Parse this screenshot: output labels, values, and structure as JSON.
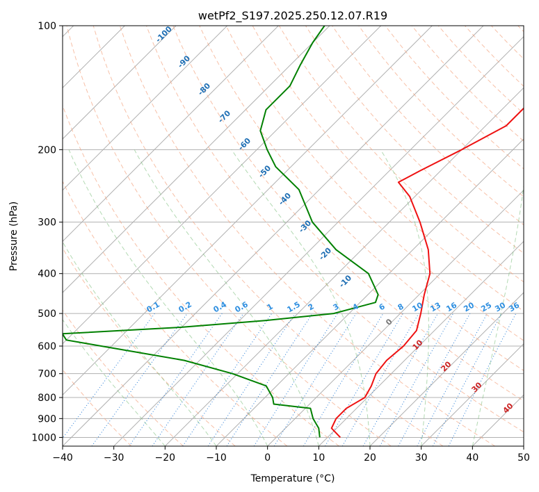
{
  "chart_data": {
    "type": "line",
    "title": "wetPf2_S197.2025.250.12.07.R19",
    "xlabel": "Temperature (°C)",
    "ylabel": "Pressure (hPa)",
    "xlim": [
      -40,
      50
    ],
    "ylim": [
      1050,
      100
    ],
    "y_scale": "log",
    "grid": true,
    "x_ticks": [
      -40,
      -30,
      -20,
      -10,
      0,
      10,
      20,
      30,
      40,
      50
    ],
    "y_ticks": [
      100,
      200,
      300,
      400,
      500,
      600,
      700,
      800,
      900,
      1000
    ],
    "dry_adiabat_labels": [
      "-100",
      "-90",
      "-80",
      "-70",
      "-60",
      "-50",
      "-40",
      "-30",
      "-20",
      "-10"
    ],
    "mixing_ratio_labels": [
      "0.1",
      "0.2",
      "0.4",
      "0.6",
      "1",
      "1.5",
      "2",
      "3",
      "4",
      "6",
      "8",
      "10",
      "13",
      "16",
      "20",
      "25",
      "30",
      "36"
    ],
    "moist_adiabat_labels": [
      "0",
      "10",
      "20",
      "30",
      "40"
    ],
    "series": [
      {
        "name": "",
        "color": "#ee1111",
        "points": [
          {
            "p": 1000,
            "t": 12.5
          },
          {
            "p": 950,
            "t": 9.0
          },
          {
            "p": 900,
            "t": 8.0
          },
          {
            "p": 850,
            "t": 8.0
          },
          {
            "p": 800,
            "t": 9.5
          },
          {
            "p": 750,
            "t": 8.5
          },
          {
            "p": 700,
            "t": 7.0
          },
          {
            "p": 650,
            "t": 6.5
          },
          {
            "p": 600,
            "t": 7.0
          },
          {
            "p": 550,
            "t": 6.5
          },
          {
            "p": 500,
            "t": 4.0
          },
          {
            "p": 450,
            "t": 1.0
          },
          {
            "p": 400,
            "t": -2.0
          },
          {
            "p": 350,
            "t": -7.0
          },
          {
            "p": 300,
            "t": -14.0
          },
          {
            "p": 260,
            "t": -21.0
          },
          {
            "p": 240,
            "t": -26.0
          },
          {
            "p": 225,
            "t": -24.0
          },
          {
            "p": 200,
            "t": -20.0
          },
          {
            "p": 175,
            "t": -16.0
          },
          {
            "p": 150,
            "t": -16.0
          },
          {
            "p": 130,
            "t": -14.0
          },
          {
            "p": 115,
            "t": -12.0
          },
          {
            "p": 100,
            "t": -13.0
          }
        ]
      },
      {
        "name": "",
        "color": "#008000",
        "points": [
          {
            "p": 1000,
            "t": 8.5
          },
          {
            "p": 950,
            "t": 6.5
          },
          {
            "p": 900,
            "t": 3.5
          },
          {
            "p": 850,
            "t": 1.0
          },
          {
            "p": 830,
            "t": -7.0
          },
          {
            "p": 800,
            "t": -8.5
          },
          {
            "p": 750,
            "t": -12.0
          },
          {
            "p": 700,
            "t": -21.0
          },
          {
            "p": 650,
            "t": -33.0
          },
          {
            "p": 600,
            "t": -52.0
          },
          {
            "p": 580,
            "t": -60.0
          },
          {
            "p": 560,
            "t": -62.0
          },
          {
            "p": 540,
            "t": -40.0
          },
          {
            "p": 520,
            "t": -25.0
          },
          {
            "p": 500,
            "t": -13.0
          },
          {
            "p": 470,
            "t": -7.0
          },
          {
            "p": 450,
            "t": -8.0
          },
          {
            "p": 400,
            "t": -14.0
          },
          {
            "p": 350,
            "t": -25.0
          },
          {
            "p": 300,
            "t": -35.0
          },
          {
            "p": 250,
            "t": -44.0
          },
          {
            "p": 220,
            "t": -53.0
          },
          {
            "p": 200,
            "t": -58.0
          },
          {
            "p": 180,
            "t": -63.0
          },
          {
            "p": 160,
            "t": -66.0
          },
          {
            "p": 140,
            "t": -66.0
          },
          {
            "p": 125,
            "t": -68.0
          },
          {
            "p": 110,
            "t": -70.0
          },
          {
            "p": 100,
            "t": -71.0
          }
        ]
      }
    ]
  }
}
